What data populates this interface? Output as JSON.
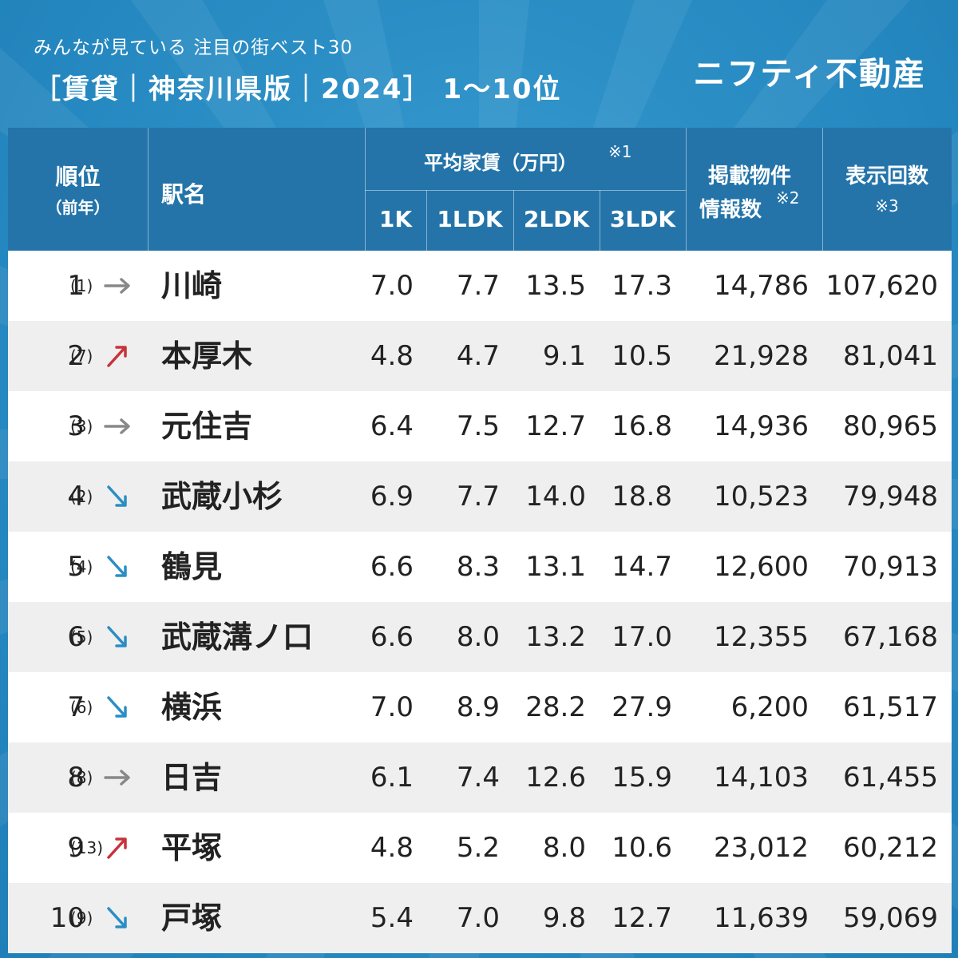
{
  "header": {
    "subtitle": "みんなが見ている 注目の街ベスト30",
    "title": "［賃貸｜神奈川県版｜2024］ 1〜10位",
    "brand": "ニフティ不動産"
  },
  "columns": {
    "rank": "順位",
    "rank_prev": "（前年）",
    "station": "駅名",
    "rent_group": "平均家賃（万円）",
    "rent_note": "※1",
    "k1": "1K",
    "ldk1": "1LDK",
    "ldk2": "2LDK",
    "ldk3": "3LDK",
    "listings_line1": "掲載物件",
    "listings_line2": "情報数",
    "listings_note": "※2",
    "views": "表示回数",
    "views_note": "※3"
  },
  "colors": {
    "up": "#c8323a",
    "down": "#2a8ec5",
    "same": "#888888"
  },
  "rows": [
    {
      "rank": "1",
      "prev": "(1)",
      "trend": "same",
      "station": "川崎",
      "k1": "7.0",
      "ldk1": "7.7",
      "ldk2": "13.5",
      "ldk3": "17.3",
      "listings": "14,786",
      "views": "107,620"
    },
    {
      "rank": "2",
      "prev": "(7)",
      "trend": "up",
      "station": "本厚木",
      "k1": "4.8",
      "ldk1": "4.7",
      "ldk2": "9.1",
      "ldk3": "10.5",
      "listings": "21,928",
      "views": "81,041"
    },
    {
      "rank": "3",
      "prev": "(3)",
      "trend": "same",
      "station": "元住吉",
      "k1": "6.4",
      "ldk1": "7.5",
      "ldk2": "12.7",
      "ldk3": "16.8",
      "listings": "14,936",
      "views": "80,965"
    },
    {
      "rank": "4",
      "prev": "(2)",
      "trend": "down",
      "station": "武蔵小杉",
      "k1": "6.9",
      "ldk1": "7.7",
      "ldk2": "14.0",
      "ldk3": "18.8",
      "listings": "10,523",
      "views": "79,948"
    },
    {
      "rank": "5",
      "prev": "(4)",
      "trend": "down",
      "station": "鶴見",
      "k1": "6.6",
      "ldk1": "8.3",
      "ldk2": "13.1",
      "ldk3": "14.7",
      "listings": "12,600",
      "views": "70,913"
    },
    {
      "rank": "6",
      "prev": "(5)",
      "trend": "down",
      "station": "武蔵溝ノ口",
      "k1": "6.6",
      "ldk1": "8.0",
      "ldk2": "13.2",
      "ldk3": "17.0",
      "listings": "12,355",
      "views": "67,168"
    },
    {
      "rank": "7",
      "prev": "(6)",
      "trend": "down",
      "station": "横浜",
      "k1": "7.0",
      "ldk1": "8.9",
      "ldk2": "28.2",
      "ldk3": "27.9",
      "listings": "6,200",
      "views": "61,517"
    },
    {
      "rank": "8",
      "prev": "(8)",
      "trend": "same",
      "station": "日吉",
      "k1": "6.1",
      "ldk1": "7.4",
      "ldk2": "12.6",
      "ldk3": "15.9",
      "listings": "14,103",
      "views": "61,455"
    },
    {
      "rank": "9",
      "prev": "(13)",
      "trend": "up",
      "station": "平塚",
      "k1": "4.8",
      "ldk1": "5.2",
      "ldk2": "8.0",
      "ldk3": "10.6",
      "listings": "23,012",
      "views": "60,212"
    },
    {
      "rank": "10",
      "prev": "(9)",
      "trend": "down",
      "station": "戸塚",
      "k1": "5.4",
      "ldk1": "7.0",
      "ldk2": "9.8",
      "ldk3": "12.7",
      "listings": "11,639",
      "views": "59,069"
    }
  ]
}
